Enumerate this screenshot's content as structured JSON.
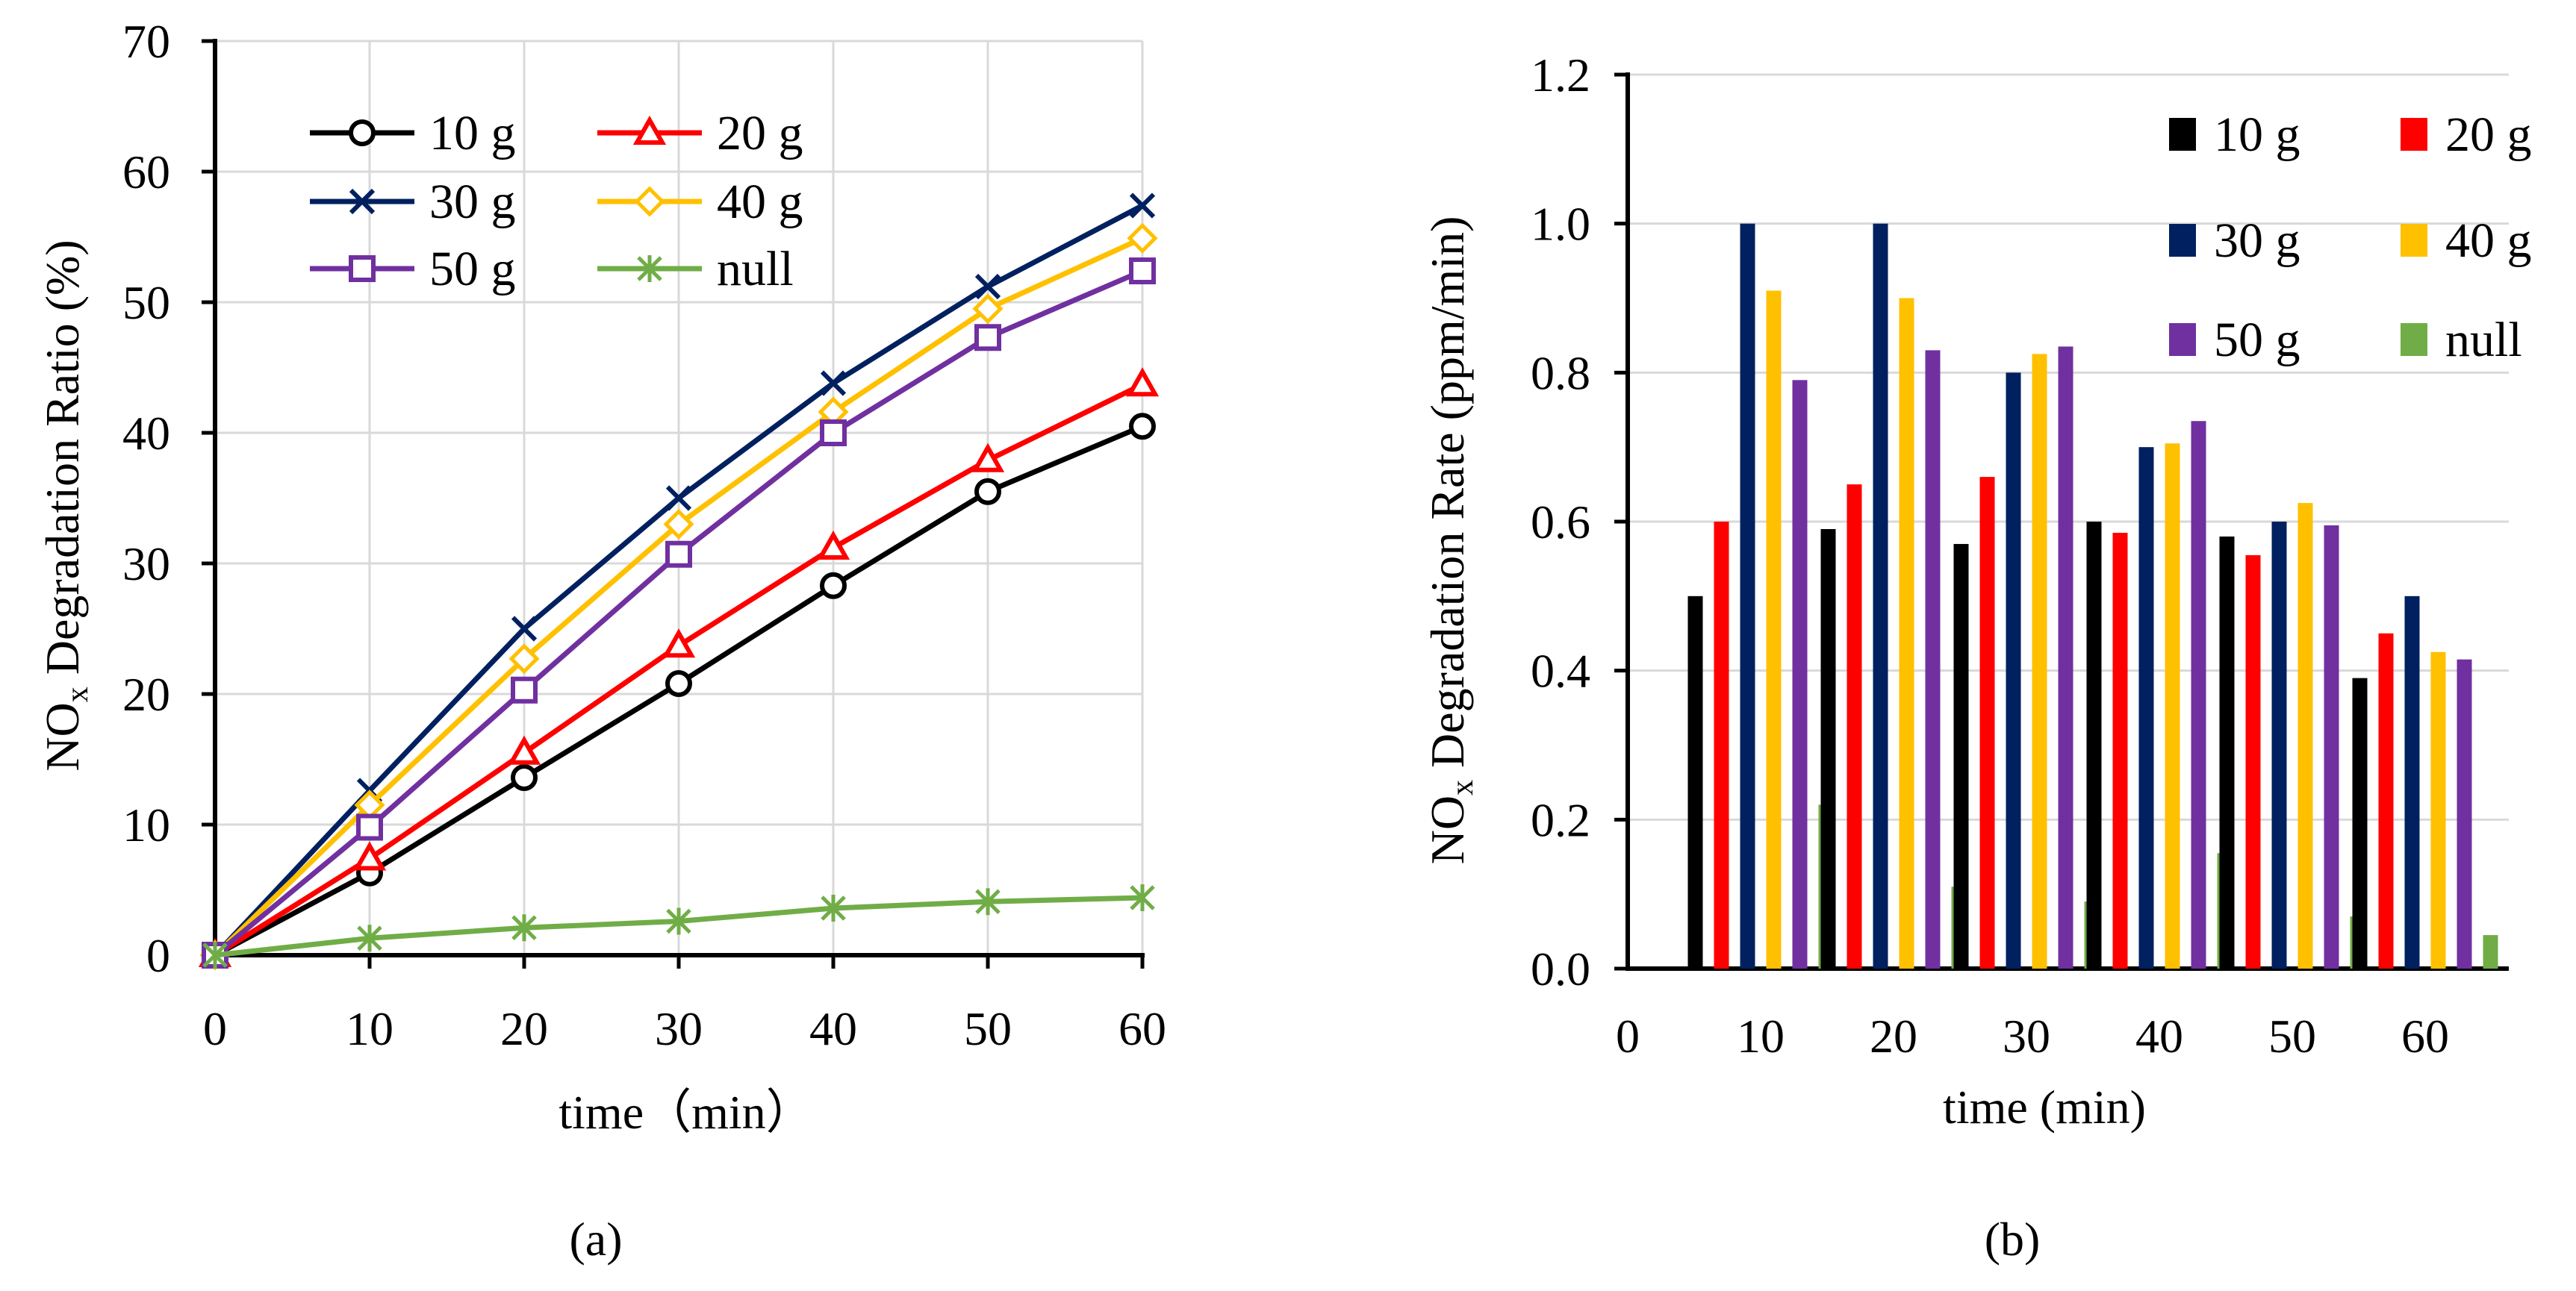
{
  "colors": {
    "10 g": "#000000",
    "20 g": "#ff0000",
    "30 g": "#002060",
    "40 g": "#ffc000",
    "50 g": "#7030a0",
    "null": "#70ad47"
  },
  "chart_data": [
    {
      "type": "line",
      "panel_label": "(a)",
      "xlabel": "time（min）",
      "ylabel_main": "NO",
      "ylabel_sub": "x",
      "ylabel_rest": " Degradation Ratio (%)",
      "xlim": [
        0,
        60
      ],
      "ylim": [
        0,
        70
      ],
      "x_ticks": [
        "0",
        "10",
        "20",
        "30",
        "40",
        "50",
        "60"
      ],
      "y_ticks": [
        "0",
        "10",
        "20",
        "30",
        "40",
        "50",
        "60",
        "70"
      ],
      "grid": true,
      "legend_position": "top-left",
      "x": [
        0,
        10,
        20,
        30,
        40,
        50,
        60
      ],
      "series": [
        {
          "name": "10 g",
          "marker": "circle",
          "values": [
            0,
            6.3,
            13.6,
            20.8,
            28.3,
            35.5,
            40.5
          ]
        },
        {
          "name": "20 g",
          "marker": "triangle",
          "values": [
            0,
            7.4,
            15.5,
            23.7,
            31.2,
            37.9,
            43.7
          ]
        },
        {
          "name": "30 g",
          "marker": "star",
          "values": [
            0,
            12.6,
            25.0,
            35.0,
            43.8,
            51.2,
            57.4
          ]
        },
        {
          "name": "40 g",
          "marker": "diamond",
          "values": [
            0,
            11.5,
            22.7,
            33.0,
            41.6,
            49.5,
            54.9
          ]
        },
        {
          "name": "50 g",
          "marker": "square",
          "values": [
            0,
            9.8,
            20.3,
            30.7,
            40.0,
            47.3,
            52.4
          ]
        },
        {
          "name": "null",
          "marker": "asterisk",
          "values": [
            0,
            1.3,
            2.1,
            2.6,
            3.6,
            4.1,
            4.4
          ]
        }
      ]
    },
    {
      "type": "bar",
      "panel_label": "(b)",
      "xlabel": "time (min)",
      "ylabel_main": "NO",
      "ylabel_sub": "x",
      "ylabel_rest": " Degradation Rate (ppm/min)",
      "ylim": [
        0,
        1.2
      ],
      "x_ticks": [
        "0",
        "10",
        "20",
        "30",
        "40",
        "50",
        "60"
      ],
      "y_ticks": [
        "0.0",
        "0.2",
        "0.4",
        "0.6",
        "0.8",
        "1.0",
        "1.2"
      ],
      "grid": true,
      "legend_position": "top-right",
      "categories": [
        "10",
        "20",
        "30",
        "40",
        "50",
        "60"
      ],
      "series": [
        {
          "name": "10 g",
          "values": [
            0.5,
            0.59,
            0.57,
            0.6,
            0.58,
            0.39
          ]
        },
        {
          "name": "20 g",
          "values": [
            0.6,
            0.65,
            0.66,
            0.585,
            0.555,
            0.45
          ]
        },
        {
          "name": "30 g",
          "values": [
            1.0,
            1.0,
            0.8,
            0.7,
            0.6,
            0.5
          ]
        },
        {
          "name": "40 g",
          "values": [
            0.91,
            0.9,
            0.825,
            0.705,
            0.625,
            0.425
          ]
        },
        {
          "name": "50 g",
          "values": [
            0.79,
            0.83,
            0.835,
            0.735,
            0.595,
            0.415
          ]
        },
        {
          "name": "null",
          "values": [
            0.22,
            0.11,
            0.09,
            0.155,
            0.07,
            0.045
          ]
        }
      ]
    }
  ]
}
